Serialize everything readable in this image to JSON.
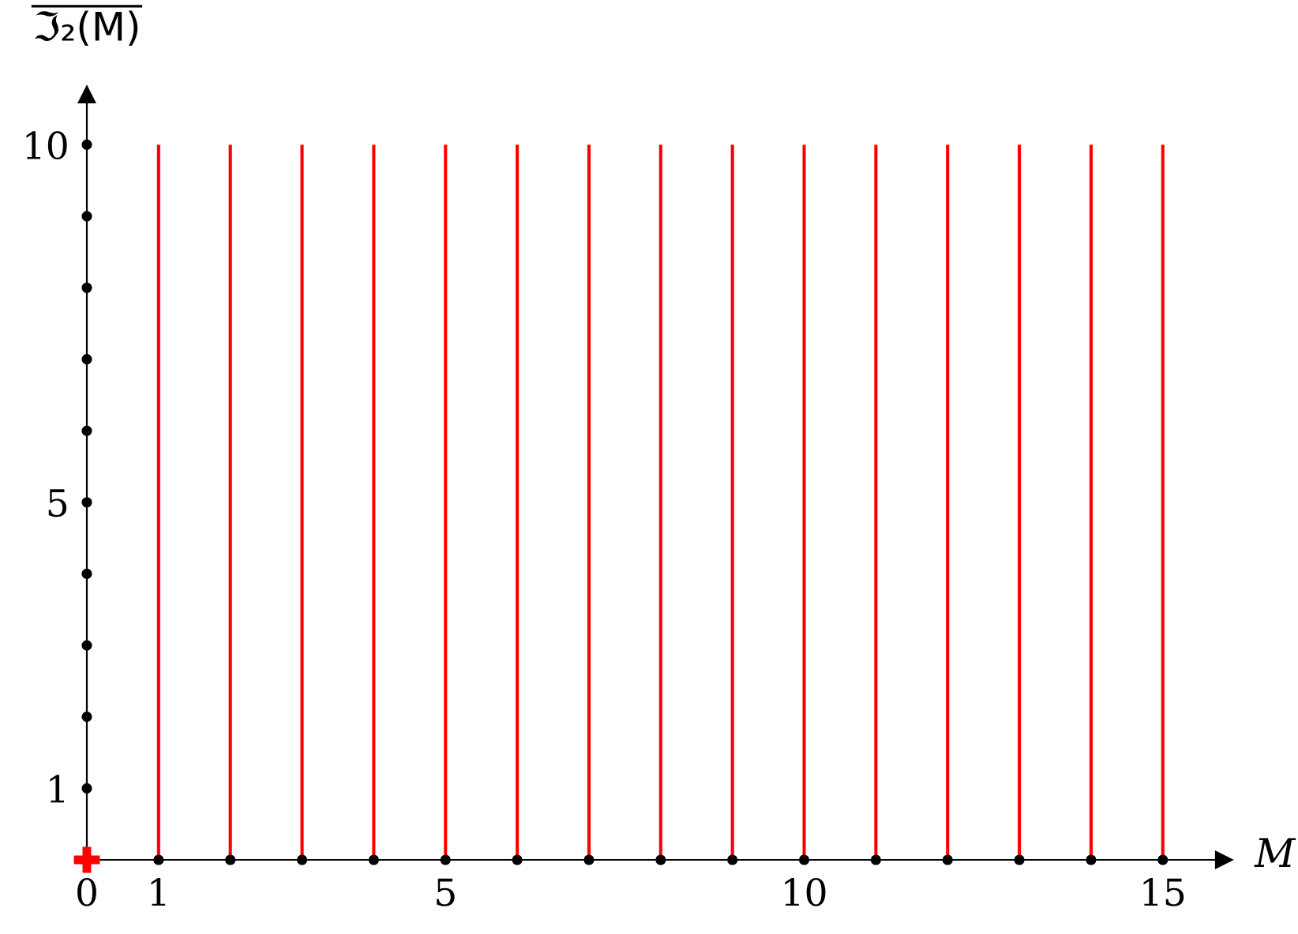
{
  "chart_data": {
    "type": "bar",
    "ylabel": "ℑ₂(M)",
    "xlabel": "M",
    "xlim": [
      0,
      15.85
    ],
    "ylim": [
      0,
      10.7
    ],
    "xticks": [
      0,
      1,
      5,
      10,
      15
    ],
    "yticks": [
      1,
      5,
      10
    ],
    "legend": false,
    "series": [
      {
        "color": "#ff0000",
        "x": [
          1,
          2,
          3,
          4,
          5,
          6,
          7,
          8,
          9,
          10,
          11,
          12,
          13,
          14,
          15
        ],
        "values": [
          10,
          10,
          10,
          10,
          10,
          10,
          10,
          10,
          10,
          10,
          10,
          10,
          10,
          10,
          10
        ]
      },
      {
        "type": "scatter",
        "marker": "circle",
        "color": "#000000",
        "x": [
          0,
          0,
          0,
          0,
          0,
          0,
          0,
          0,
          0,
          0,
          1,
          2,
          3,
          4,
          5,
          6,
          7,
          8,
          9,
          10,
          11,
          12,
          13,
          14,
          15
        ],
        "values": [
          1,
          2,
          3,
          4,
          5,
          6,
          7,
          8,
          9,
          10,
          0,
          0,
          0,
          0,
          0,
          0,
          0,
          0,
          0,
          0,
          0,
          0,
          0,
          0,
          0
        ]
      },
      {
        "type": "scatter",
        "marker": "cross",
        "color": "#ff0000",
        "x": [
          0
        ],
        "values": [
          0
        ]
      }
    ]
  }
}
